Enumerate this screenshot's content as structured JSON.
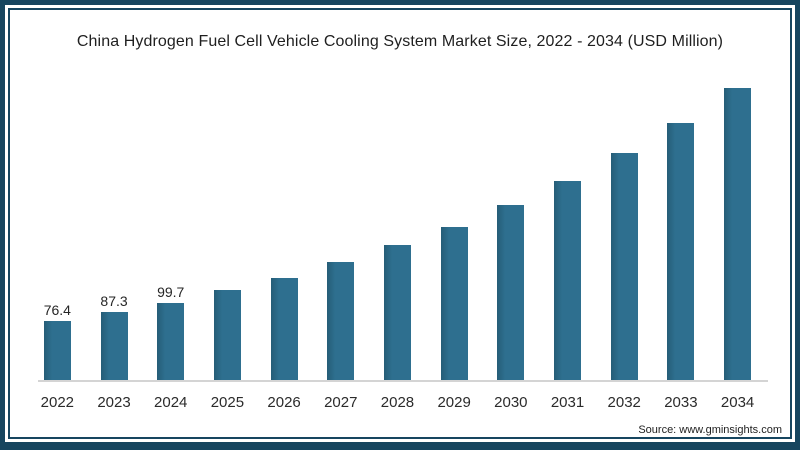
{
  "frame": {
    "border_color": "#16455f",
    "panel_background": "#ffffff"
  },
  "chart": {
    "title": "China Hydrogen Fuel Cell Vehicle Cooling System Market Size, 2022 - 2034 (USD Million)",
    "source": "Source: www.gminsights.com"
  },
  "chart_data": {
    "type": "bar",
    "title": "China Hydrogen Fuel Cell Vehicle Cooling System Market Size, 2022 - 2034 (USD Million)",
    "unit": "USD Million",
    "categories": [
      "2022",
      "2023",
      "2024",
      "2025",
      "2026",
      "2027",
      "2028",
      "2029",
      "2030",
      "2031",
      "2032",
      "2033",
      "2034"
    ],
    "values": [
      76.4,
      87.3,
      99.7,
      115.7,
      132.0,
      151.8,
      174.6,
      197.8,
      225.8,
      256.7,
      292.4,
      331.9,
      376.3
    ],
    "data_labels_shown": [
      "76.4",
      "87.3",
      "99.7",
      "",
      "",
      "",
      "",
      "",
      "",
      "",
      "",
      "",
      ""
    ],
    "xlabel": "",
    "ylabel": "",
    "ylim": [
      0,
      400
    ],
    "grid": "off",
    "legend": "none",
    "y_axis": "hidden",
    "x_axis_line_color": "#d4d4d4",
    "bar_color": "#2e6f8f",
    "bar_color_dark": "#255d77",
    "label_color": "#262626",
    "source": "Source: www.gminsights.com"
  }
}
